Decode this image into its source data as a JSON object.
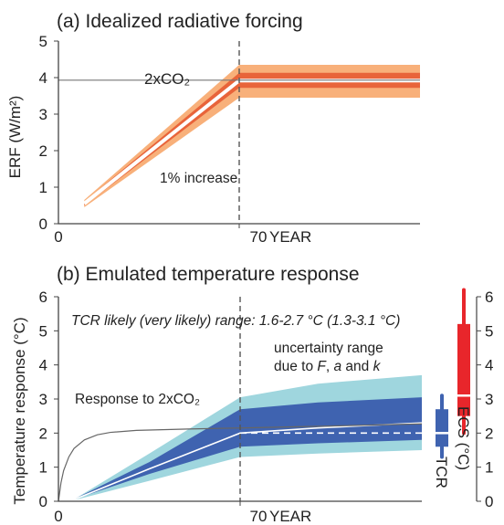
{
  "chart_data": [
    {
      "type": "area",
      "panel": "a",
      "title": "(a) Idealized radiative forcing",
      "ylabel": "ERF (W/m²)",
      "xlabel": "YEAR",
      "xlim": [
        0,
        140
      ],
      "ylim": [
        0,
        5
      ],
      "yticks": [
        "0",
        "1",
        "2",
        "3",
        "4",
        "5"
      ],
      "xticks": [
        "0",
        "70"
      ],
      "reference_line": {
        "label": "2xCO₂",
        "value": 3.93
      },
      "vline_year": 70,
      "series_label": "1% increase",
      "series": [
        {
          "role": "very-likely range",
          "color": "#f8b07a",
          "x": [
            10,
            70,
            140
          ],
          "low": [
            0.45,
            3.45,
            3.45
          ],
          "high": [
            0.65,
            4.35,
            4.35
          ]
        },
        {
          "role": "likely range",
          "color": "#e8643a",
          "x": [
            10,
            70,
            140
          ],
          "low": [
            0.5,
            3.72,
            3.72
          ],
          "high": [
            0.6,
            4.13,
            4.13
          ]
        },
        {
          "role": "central",
          "color": "#ffffff",
          "x": [
            10,
            70,
            140
          ],
          "y": [
            0.55,
            3.92,
            3.92
          ]
        }
      ]
    },
    {
      "type": "area",
      "panel": "b",
      "title": "(b) Emulated temperature response",
      "ylabel": "Temperature response (°C)",
      "xlabel": "YEAR",
      "xlim": [
        0,
        140
      ],
      "ylim": [
        0,
        6
      ],
      "yticks": [
        "0",
        "1",
        "2",
        "3",
        "4",
        "5",
        "6"
      ],
      "xticks": [
        "0",
        "70"
      ],
      "vline_year": 70,
      "annotation_tcr": "TCR likely (very likely) range: 1.6-2.7 °C (1.3-3.1 °C)",
      "uncertainty_line1": "uncertainty range",
      "uncertainty_line2_prefix": "due to ",
      "uncertainty_F": "F",
      "uncertainty_a": "a",
      "uncertainty_k": "k",
      "uncertainty_sep1": ", ",
      "uncertainty_sep2": " and ",
      "step_label": "Response to 2xCO₂",
      "series": [
        {
          "role": "very-likely range",
          "color": "#9fd6de",
          "x": [
            7,
            35,
            70,
            100,
            140
          ],
          "low": [
            0.05,
            0.6,
            1.3,
            1.4,
            1.5
          ],
          "high": [
            0.1,
            1.4,
            3.05,
            3.45,
            3.7
          ]
        },
        {
          "role": "likely range",
          "color": "#3f63b0",
          "x": [
            7,
            35,
            70,
            100,
            140
          ],
          "low": [
            0.08,
            0.8,
            1.6,
            1.7,
            1.8
          ],
          "high": [
            0.1,
            1.15,
            2.7,
            2.9,
            3.05
          ]
        },
        {
          "role": "central",
          "color": "#ffffff",
          "x": [
            7,
            35,
            70,
            100,
            140
          ],
          "y": [
            0.08,
            0.95,
            2.0,
            2.15,
            2.3
          ]
        },
        {
          "role": "equilibrium (dashed)",
          "color": "#ffffff",
          "x": [
            70,
            140
          ],
          "y": [
            2.0,
            2.0
          ]
        },
        {
          "role": "abrupt 2xCO2 response",
          "color": "#666666",
          "x": [
            0,
            1,
            2,
            4,
            6,
            10,
            15,
            20,
            30,
            50,
            70,
            100,
            140
          ],
          "y": [
            0,
            0.55,
            0.9,
            1.3,
            1.55,
            1.8,
            1.95,
            2.02,
            2.08,
            2.12,
            2.15,
            2.2,
            2.27
          ]
        }
      ],
      "whiskers": [
        {
          "label": "TCR",
          "color": "#3f63b0",
          "very_likely": [
            1.3,
            3.1
          ],
          "likely": [
            1.6,
            2.7
          ],
          "median": 2.0
        },
        {
          "label": "ECS (°C)",
          "color": "#e8262b",
          "very_likely": [
            2.0,
            6.2
          ],
          "likely": [
            2.5,
            5.2
          ],
          "median": 3.1
        }
      ],
      "right_axis_ticks": [
        "0",
        "1",
        "2",
        "3",
        "4",
        "5",
        "6"
      ]
    }
  ]
}
